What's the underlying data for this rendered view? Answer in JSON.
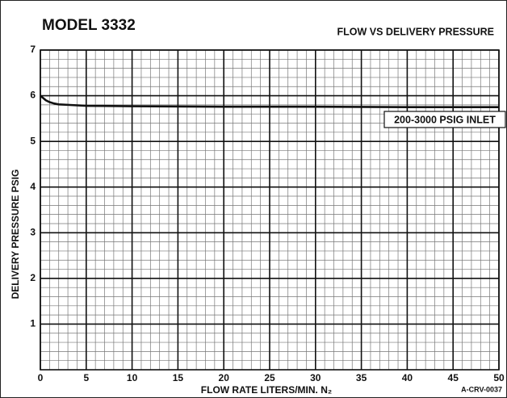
{
  "chart_data": {
    "type": "line",
    "title": "MODEL 3332",
    "subtitle": "FLOW VS DELIVERY PRESSURE",
    "x_label": "FLOW RATE LITERS/MIN. N₂",
    "y_label": "DELIVERY PRESSURE PSIG",
    "annotation": "200-3000 PSIG INLET",
    "figure_id": "A-CRV-0037",
    "xlim": [
      0,
      50
    ],
    "xticks": [
      0,
      5,
      10,
      15,
      20,
      25,
      30,
      35,
      40,
      45,
      50
    ],
    "ylim": [
      0,
      7
    ],
    "yticks": [
      1,
      2,
      3,
      4,
      5,
      6,
      7
    ],
    "grid": true,
    "minor_grid": {
      "x": 1,
      "y": 0.2
    },
    "series": [
      {
        "name": "200-3000 PSIG INLET",
        "color": "#111111",
        "x": [
          0,
          0.3,
          0.6,
          1,
          1.5,
          2,
          3,
          5,
          10,
          20,
          30,
          40,
          50
        ],
        "values": [
          6.0,
          5.95,
          5.9,
          5.86,
          5.83,
          5.81,
          5.8,
          5.78,
          5.77,
          5.76,
          5.76,
          5.75,
          5.75
        ]
      }
    ]
  }
}
